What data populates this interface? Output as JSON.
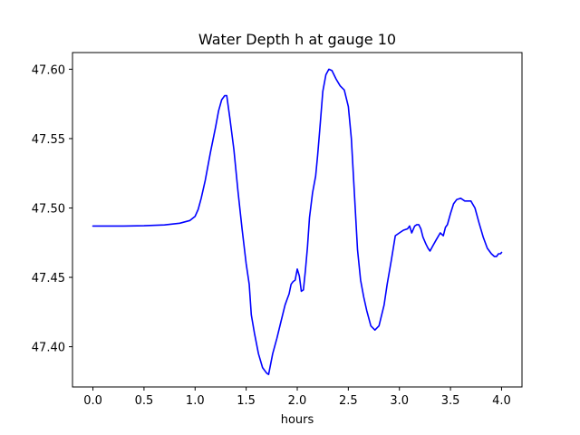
{
  "chart_data": {
    "type": "line",
    "title": "Water Depth h at gauge 10",
    "xlabel": "hours",
    "ylabel": "",
    "xlim": [
      -0.2,
      4.2
    ],
    "ylim": [
      47.371,
      47.612
    ],
    "grid": false,
    "x_ticks": [
      0.0,
      0.5,
      1.0,
      1.5,
      2.0,
      2.5,
      3.0,
      3.5,
      4.0
    ],
    "x_tick_labels": [
      "0.0",
      "0.5",
      "1.0",
      "1.5",
      "2.0",
      "2.5",
      "3.0",
      "3.5",
      "4.0"
    ],
    "y_ticks": [
      47.4,
      47.45,
      47.5,
      47.55,
      47.6
    ],
    "y_tick_labels": [
      "47.40",
      "47.45",
      "47.50",
      "47.55",
      "47.60"
    ],
    "color": "#0000ff",
    "series": [
      {
        "x": [
          0.0,
          0.3,
          0.5,
          0.7,
          0.85,
          0.95,
          1.0,
          1.03,
          1.06,
          1.1,
          1.15,
          1.2,
          1.23,
          1.26,
          1.29,
          1.31,
          1.34,
          1.38,
          1.42,
          1.46,
          1.5,
          1.53,
          1.55,
          1.58,
          1.62,
          1.66,
          1.7,
          1.72,
          1.76,
          1.8,
          1.84,
          1.88,
          1.9,
          1.92,
          1.94,
          1.96,
          1.98,
          2.0,
          2.02,
          2.04,
          2.06,
          2.08,
          2.1,
          2.12,
          2.15,
          2.18,
          2.2,
          2.22,
          2.25,
          2.28,
          2.31,
          2.34,
          2.38,
          2.42,
          2.46,
          2.5,
          2.53,
          2.56,
          2.59,
          2.62,
          2.65,
          2.68,
          2.72,
          2.76,
          2.8,
          2.85,
          2.88,
          2.92,
          2.96,
          3.0,
          3.04,
          3.08,
          3.1,
          3.12,
          3.15,
          3.17,
          3.19,
          3.21,
          3.23,
          3.26,
          3.28,
          3.3,
          3.33,
          3.36,
          3.4,
          3.43,
          3.45,
          3.47,
          3.5,
          3.53,
          3.56,
          3.6,
          3.64,
          3.67,
          3.7,
          3.74,
          3.78,
          3.82,
          3.86,
          3.9,
          3.93,
          3.95,
          3.97,
          3.99,
          4.0
        ],
        "y": [
          47.487,
          47.487,
          47.4872,
          47.4878,
          47.489,
          47.491,
          47.494,
          47.499,
          47.507,
          47.52,
          47.54,
          47.558,
          47.57,
          47.578,
          47.581,
          47.581,
          47.565,
          47.542,
          47.512,
          47.485,
          47.46,
          47.445,
          47.423,
          47.41,
          47.395,
          47.385,
          47.381,
          47.38,
          47.395,
          47.406,
          47.418,
          47.43,
          47.434,
          47.438,
          47.445,
          47.447,
          47.448,
          47.456,
          47.451,
          47.44,
          47.441,
          47.455,
          47.472,
          47.493,
          47.511,
          47.523,
          47.538,
          47.556,
          47.584,
          47.596,
          47.6,
          47.599,
          47.593,
          47.588,
          47.585,
          47.573,
          47.55,
          47.51,
          47.47,
          47.448,
          47.436,
          47.426,
          47.415,
          47.412,
          47.415,
          47.43,
          47.445,
          47.462,
          47.48,
          47.482,
          47.484,
          47.485,
          47.487,
          47.482,
          47.487,
          47.488,
          47.488,
          47.485,
          47.479,
          47.474,
          47.471,
          47.469,
          47.473,
          47.477,
          47.482,
          47.48,
          47.486,
          47.488,
          47.496,
          47.503,
          47.506,
          47.507,
          47.505,
          47.505,
          47.505,
          47.5,
          47.489,
          47.479,
          47.471,
          47.467,
          47.465,
          47.465,
          47.467,
          47.467,
          47.468
        ]
      }
    ]
  }
}
